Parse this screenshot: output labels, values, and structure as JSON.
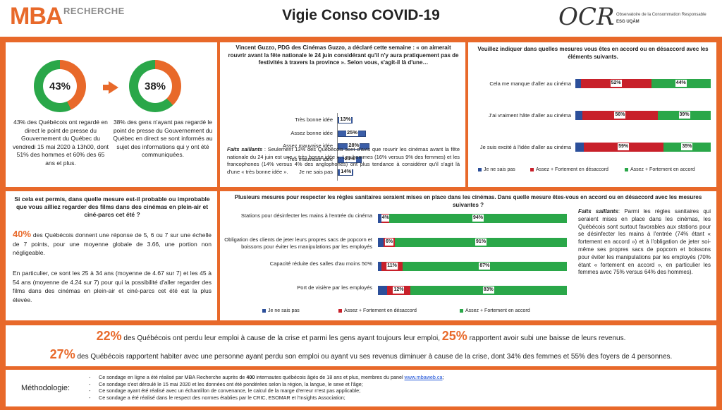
{
  "header": {
    "logo_mba": "MBA",
    "logo_recherche": "RECHERCHE",
    "title": "Vigie Conso COVID-19",
    "logo_ocr": "OCR",
    "ocr_line1": "Observatoire de la Consommation Responsable",
    "ocr_line2": "ESG UQÀM"
  },
  "colors": {
    "orange": "#e8692a",
    "blue": "#2c4f9a",
    "red": "#c8202a",
    "green": "#2aa749"
  },
  "panel_watch": {
    "donut1_pct": "43%",
    "donut1_value": 43,
    "donut1_text": "43% des Québécois ont regardé en direct le point de presse du Gouvernement du Québec du vendredi 15 mai 2020 à 13h00, dont 51% des hommes et 60% des 65 ans et plus.",
    "donut2_pct": "38%",
    "donut2_value": 38,
    "donut2_text": "38% des gens n'ayant pas regardé le point de presse du Gouvernement du Québec en direct se sont informés au sujet des informations qui y ont été communiquées."
  },
  "panel_guzzo": {
    "question": "Vincent Guzzo, PDG des Cinémas Guzzo, a déclaré cette semaine : « on aimerait rouvrir avant la fête nationale le 24 juin considérant qu'il n'y aura pratiquement pas de festivités à travers la province ». Selon vous, s'agit-il là d'une…",
    "notes_label": "Faits saillants",
    "notes": " : Seulement 13% des Québécois sont d'avis que rouvrir les cinémas avant la fête nationale du 24 juin est une « très bonne idée ». Les hommes (16% versus 9% des femmes) et les francophones (14% versus 4% des anglophones) ont plus tendance à considérer qu'il s'agit là d'une « très bonne idée »."
  },
  "panel_agree": {
    "question": "Veuillez indiquer dans quelles mesures vous êtes en accord ou en désaccord avec les éléments suivants.",
    "legend": [
      "Je ne sais pas",
      "Assez + Fortement en désaccord",
      "Assez + Fortement en accord"
    ]
  },
  "panel_drivein": {
    "question": "Si cela est permis, dans quelle mesure est-il probable ou improbable que vous ailliez regarder des films dans des cinémas en plein-air et ciné-parcs cet été ?",
    "pct": "40%",
    "text1": " des Québécois donnent une réponse de 5, 6 ou 7 sur une échelle de 7 points, pour une moyenne globale de 3.66, une portion non négligeable.",
    "text2": "En particulier, ce sont les 25 à 34 ans (moyenne de 4.67 sur 7) et les 45 à 54 ans (moyenne de 4.24 sur 7) pour qui la possibilité d'aller regarder des films dans des cinémas en plein-air et ciné-parcs cet été est la plus élevée."
  },
  "panel_measures": {
    "question": "Plusieurs mesures pour respecter les règles sanitaires seraient mises en place dans les cinémas. Dans quelle mesure êtes-vous en accord ou en désaccord avec les mesures suivantes ?",
    "legend": [
      "Je ne sais pas",
      "Assez + Fortement en désaccord",
      "Assez + Fortement en accord"
    ],
    "notes_label": "Faits saillants",
    "notes": ": Parmi les règles sanitaires qui seraient mises en place dans les cinémas, les Québécois sont surtout favorables aux stations pour se désinfecter les mains à l'entrée (74% étant « fortement en accord ») et à l'obligation de jeter soi-même ses propres sacs de popcorn et boissons pour éviter les manipulations par les employés (70% étant « fortement en accord », en particulier les femmes avec 75% versus 64% des hommes)."
  },
  "panel_jobs": {
    "pct1": "22%",
    "text1": " des Québécois ont perdu leur emploi à cause de la crise et parmi les gens ayant toujours leur emploi, ",
    "pct2": "25%",
    "text2": " rapportent avoir subi une baisse de leurs revenus.",
    "pct3": "27%",
    "text3": " des Québécois rapportent habiter avec une personne ayant perdu son emploi ou ayant vu ses revenus diminuer à cause de la crise, dont 34% des femmes et 55% des foyers de 4 personnes."
  },
  "methodology": {
    "title": "Méthodologie:",
    "line1_a": "Ce sondage en ligne a été réalisé par MBA Recherche auprès de ",
    "line1_b": "400",
    "line1_c": " internautes québécois âgés de 18 ans et plus, membres du panel ",
    "line1_link": "www.mbaweb.ca",
    "line1_d": ";",
    "line2": "Ce sondage s'est déroulé le 15 mai 2020 et les données ont été pondérées selon la région, la langue, le sexe et l'âge;",
    "line3": "Ce sondage ayant été réalisé avec un échantillon de convenance, le calcul de la marge d'erreur n'est pas applicable;",
    "line4": "Ce sondage a été réalisé dans le respect des normes établies par le CRIC, ESOMAR et l'Insights Association;"
  },
  "chart_data": [
    {
      "type": "bar",
      "orientation": "horizontal",
      "categories": [
        "Très bonne idée",
        "Assez bonne idée",
        "Assez mauvaise idée",
        "Très mauvaise idée",
        "Je ne sais pas"
      ],
      "values": [
        13,
        25,
        28,
        21,
        14
      ],
      "labels": [
        "13%",
        "25%",
        "28%",
        "21%",
        "14%"
      ],
      "xlim": [
        0,
        100
      ]
    },
    {
      "type": "bar",
      "orientation": "horizontal",
      "stacked": true,
      "categories": [
        "Cela me manque d'aller au cinéma",
        "J'ai vraiment hâte d'aller au cinéma",
        "Je suis excité à l'idée d'aller au cinéma"
      ],
      "series": [
        {
          "name": "Je ne sais pas",
          "values": [
            4,
            5,
            6
          ]
        },
        {
          "name": "Assez + Fortement en désaccord",
          "values": [
            52,
            56,
            59
          ],
          "labels": [
            "52%",
            "56%",
            "59%"
          ]
        },
        {
          "name": "Assez + Fortement en accord",
          "values": [
            44,
            39,
            35
          ],
          "labels": [
            "44%",
            "39%",
            "35%"
          ]
        }
      ]
    },
    {
      "type": "bar",
      "orientation": "horizontal",
      "stacked": true,
      "categories": [
        "Stations pour désinfecter les mains à l'entrée du cinéma",
        "Obligation des clients de jeter leurs propres sacs de popcorn et boissons pour éviter les manipulations par les employés",
        "Capacité réduite des salles d'au moins 50%",
        "Port de visière par les employés"
      ],
      "series": [
        {
          "name": "Je ne sais pas",
          "values": [
            2,
            3,
            2,
            5
          ]
        },
        {
          "name": "Assez + Fortement en désaccord",
          "values": [
            4,
            6,
            11,
            12
          ],
          "labels": [
            "4%",
            "6%",
            "11%",
            "12%"
          ]
        },
        {
          "name": "Assez + Fortement en accord",
          "values": [
            94,
            91,
            87,
            83
          ],
          "labels": [
            "94%",
            "91%",
            "87%",
            "83%"
          ]
        }
      ]
    }
  ]
}
